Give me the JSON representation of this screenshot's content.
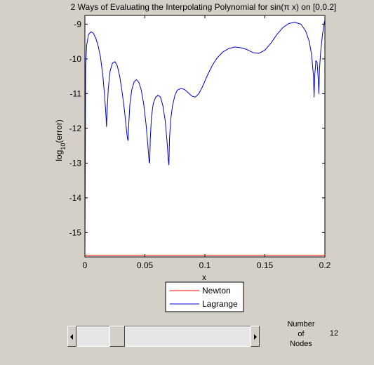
{
  "chart_data": {
    "type": "line",
    "title": "2 Ways of Evaluating the Interpolating Polynomial for sin(π x) on [0,0.2]",
    "xlabel": "x",
    "ylabel_base": "log",
    "ylabel_sub": "10",
    "ylabel_rest": "(error)",
    "xlim": [
      0,
      0.2
    ],
    "ylim": [
      -15.7,
      -8.75
    ],
    "xticks": [
      0,
      0.05,
      0.1,
      0.15,
      0.2
    ],
    "xtick_labels": [
      "0",
      "0.05",
      "0.1",
      "0.15",
      "0.2"
    ],
    "yticks": [
      -15,
      -14,
      -13,
      -12,
      -11,
      -10,
      -9
    ],
    "ytick_labels": [
      "-15",
      "-14",
      "-13",
      "-12",
      "-11",
      "-10",
      "-9"
    ],
    "grid": false,
    "legend_position": "below-plot",
    "series": [
      {
        "name": "Newton",
        "color": "#ff0000",
        "x": [
          0,
          0.2
        ],
        "y": [
          -15.65,
          -15.65
        ]
      },
      {
        "name": "Lagrange",
        "color": "#0000cc",
        "x": [
          0,
          0.0006,
          0.0015,
          0.003,
          0.005,
          0.007,
          0.009,
          0.011,
          0.013,
          0.015,
          0.0165,
          0.0175,
          0.018,
          0.0185,
          0.0195,
          0.021,
          0.023,
          0.025,
          0.027,
          0.029,
          0.031,
          0.033,
          0.0345,
          0.0355,
          0.036,
          0.0365,
          0.0375,
          0.039,
          0.041,
          0.043,
          0.045,
          0.047,
          0.049,
          0.051,
          0.0525,
          0.0535,
          0.054,
          0.0545,
          0.0555,
          0.057,
          0.059,
          0.061,
          0.063,
          0.065,
          0.067,
          0.0685,
          0.0695,
          0.07,
          0.0705,
          0.0715,
          0.073,
          0.075,
          0.077,
          0.08,
          0.083,
          0.086,
          0.089,
          0.092,
          0.095,
          0.098,
          0.102,
          0.106,
          0.11,
          0.115,
          0.12,
          0.125,
          0.13,
          0.135,
          0.14,
          0.145,
          0.15,
          0.155,
          0.16,
          0.165,
          0.17,
          0.175,
          0.18,
          0.184,
          0.187,
          0.189,
          0.1905,
          0.191,
          0.1915,
          0.1925,
          0.1935,
          0.1945,
          0.195,
          0.1955,
          0.1965,
          0.198,
          0.1995,
          0.2
        ],
        "y": [
          -15.65,
          -10.2,
          -9.6,
          -9.3,
          -9.22,
          -9.26,
          -9.4,
          -9.62,
          -9.95,
          -10.5,
          -11.1,
          -11.6,
          -11.95,
          -11.5,
          -10.85,
          -10.35,
          -10.12,
          -10.08,
          -10.2,
          -10.5,
          -10.95,
          -11.5,
          -12.0,
          -12.3,
          -12.35,
          -11.9,
          -11.3,
          -10.9,
          -10.66,
          -10.6,
          -10.68,
          -10.9,
          -11.3,
          -11.9,
          -12.5,
          -12.95,
          -13.0,
          -12.3,
          -11.65,
          -11.28,
          -11.1,
          -11.05,
          -11.1,
          -11.35,
          -11.8,
          -12.4,
          -12.9,
          -13.05,
          -12.3,
          -11.75,
          -11.35,
          -11.05,
          -10.9,
          -10.85,
          -10.88,
          -10.97,
          -11.07,
          -11.1,
          -11.0,
          -10.8,
          -10.48,
          -10.2,
          -9.98,
          -9.8,
          -9.7,
          -9.66,
          -9.68,
          -9.73,
          -9.82,
          -9.84,
          -9.75,
          -9.55,
          -9.3,
          -9.1,
          -8.98,
          -8.95,
          -9.0,
          -9.2,
          -9.5,
          -9.9,
          -10.5,
          -11.1,
          -10.5,
          -10.05,
          -10.1,
          -10.6,
          -11.0,
          -10.3,
          -9.8,
          -9.3,
          -8.95,
          -8.9
        ]
      }
    ]
  },
  "slider": {
    "value": 12,
    "min": 2,
    "max": 50
  },
  "nodes_control": {
    "label": "Number\nof\nNodes",
    "value": "12"
  }
}
